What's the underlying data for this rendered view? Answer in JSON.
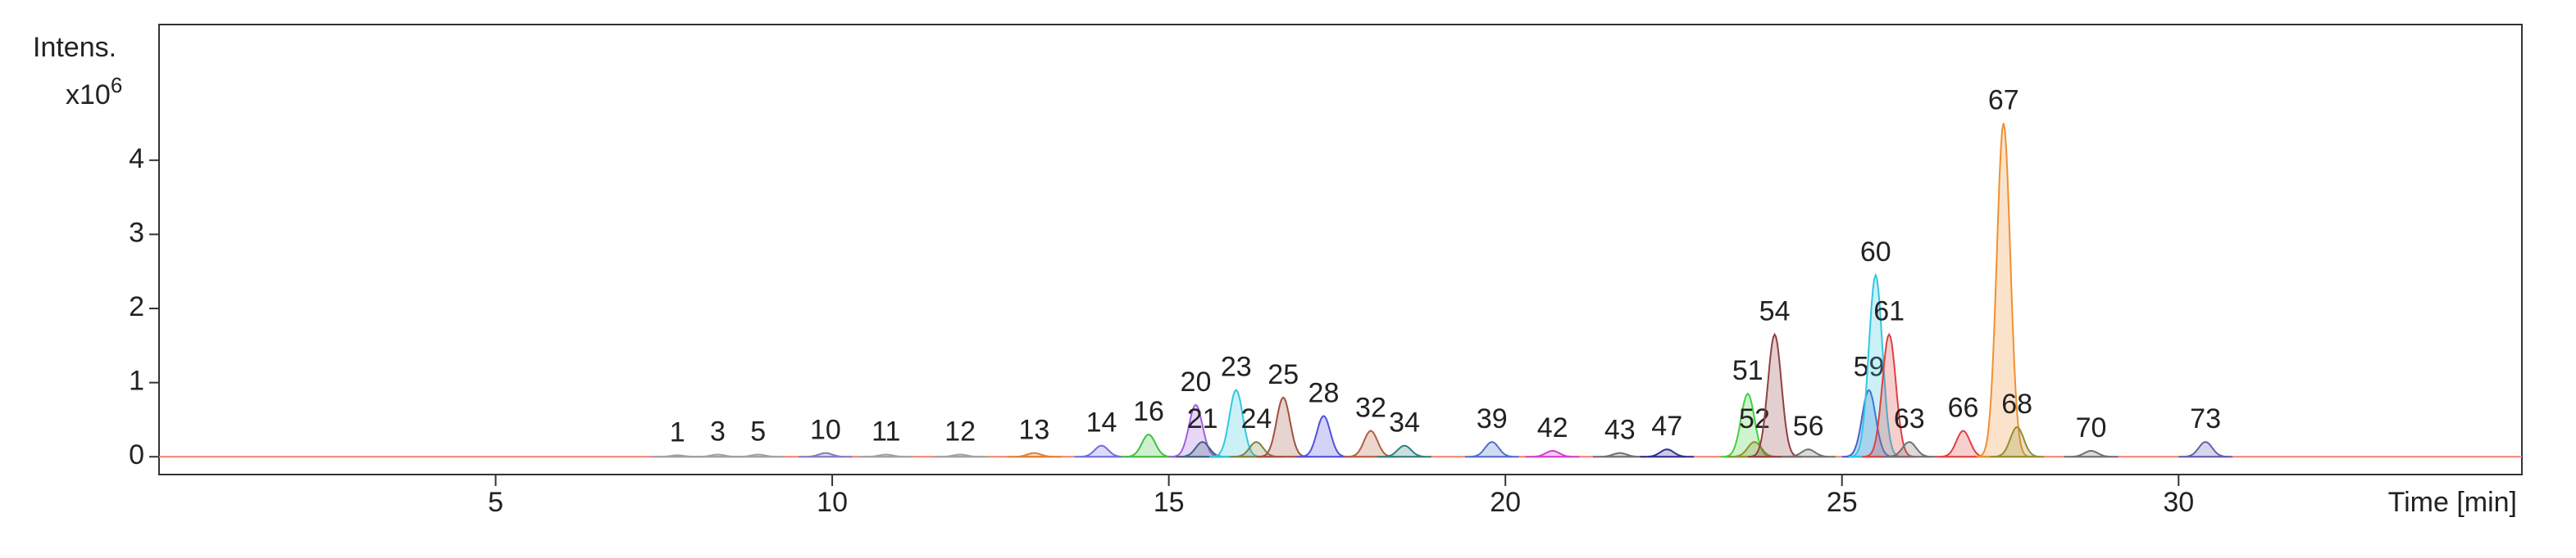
{
  "chart_data": {
    "type": "chromatogram",
    "y_label": "Intens.",
    "y_scale": "x10",
    "y_exponent": "6",
    "x_label": "Time [min]",
    "xlim": [
      0,
      35.1
    ],
    "xticks": [
      5,
      10,
      15,
      20,
      25,
      30
    ],
    "ylim": [
      -0.24,
      5.83
    ],
    "yticks": [
      0,
      1,
      2,
      3,
      4
    ],
    "baseline_color": "#f08070",
    "peaks": [
      {
        "label": "1",
        "time": 7.7,
        "height": 0.02,
        "color": "#a0a0a0"
      },
      {
        "label": "3",
        "time": 8.3,
        "height": 0.03,
        "color": "#a0a0a0"
      },
      {
        "label": "5",
        "time": 8.9,
        "height": 0.03,
        "color": "#a0a0a0"
      },
      {
        "label": "10",
        "time": 9.9,
        "height": 0.05,
        "color": "#8080c0"
      },
      {
        "label": "11",
        "time": 10.8,
        "height": 0.03,
        "color": "#a0a0a0"
      },
      {
        "label": "12",
        "time": 11.9,
        "height": 0.03,
        "color": "#a0a0a0"
      },
      {
        "label": "13",
        "time": 13.0,
        "height": 0.05,
        "color": "#e08030"
      },
      {
        "label": "14",
        "time": 14.0,
        "height": 0.15,
        "color": "#7070e0"
      },
      {
        "label": "16",
        "time": 14.7,
        "height": 0.3,
        "color": "#40c040"
      },
      {
        "label": "20",
        "time": 15.4,
        "height": 0.7,
        "color": "#a060e0"
      },
      {
        "label": "21",
        "time": 15.5,
        "height": 0.2,
        "color": "#406080"
      },
      {
        "label": "23",
        "time": 16.0,
        "height": 0.9,
        "color": "#30c8e0"
      },
      {
        "label": "24",
        "time": 16.3,
        "height": 0.2,
        "color": "#808040"
      },
      {
        "label": "25",
        "time": 16.7,
        "height": 0.8,
        "color": "#a05040"
      },
      {
        "label": "28",
        "time": 17.3,
        "height": 0.55,
        "color": "#5050e0"
      },
      {
        "label": "32",
        "time": 18.0,
        "height": 0.35,
        "color": "#b06040"
      },
      {
        "label": "34",
        "time": 18.5,
        "height": 0.15,
        "color": "#308080"
      },
      {
        "label": "39",
        "time": 19.8,
        "height": 0.2,
        "color": "#5070d0"
      },
      {
        "label": "42",
        "time": 20.7,
        "height": 0.08,
        "color": "#d040d0"
      },
      {
        "label": "43",
        "time": 21.7,
        "height": 0.05,
        "color": "#707070"
      },
      {
        "label": "47",
        "time": 22.4,
        "height": 0.1,
        "color": "#303090"
      },
      {
        "label": "51",
        "time": 23.6,
        "height": 0.85,
        "color": "#40d040"
      },
      {
        "label": "52",
        "time": 23.7,
        "height": 0.2,
        "color": "#909030"
      },
      {
        "label": "54",
        "time": 24.0,
        "height": 1.65,
        "color": "#904040"
      },
      {
        "label": "56",
        "time": 24.5,
        "height": 0.1,
        "color": "#707070"
      },
      {
        "label": "59",
        "time": 25.4,
        "height": 0.9,
        "color": "#4060d0"
      },
      {
        "label": "60",
        "time": 25.5,
        "height": 2.45,
        "color": "#30c8e0"
      },
      {
        "label": "61",
        "time": 25.7,
        "height": 1.65,
        "color": "#e04040"
      },
      {
        "label": "63",
        "time": 26.0,
        "height": 0.2,
        "color": "#707070"
      },
      {
        "label": "66",
        "time": 26.8,
        "height": 0.35,
        "color": "#e04040"
      },
      {
        "label": "67",
        "time": 27.4,
        "height": 4.5,
        "color": "#f09030"
      },
      {
        "label": "68",
        "time": 27.6,
        "height": 0.4,
        "color": "#909030"
      },
      {
        "label": "70",
        "time": 28.7,
        "height": 0.08,
        "color": "#707070"
      },
      {
        "label": "73",
        "time": 30.4,
        "height": 0.2,
        "color": "#6060b0"
      }
    ]
  }
}
